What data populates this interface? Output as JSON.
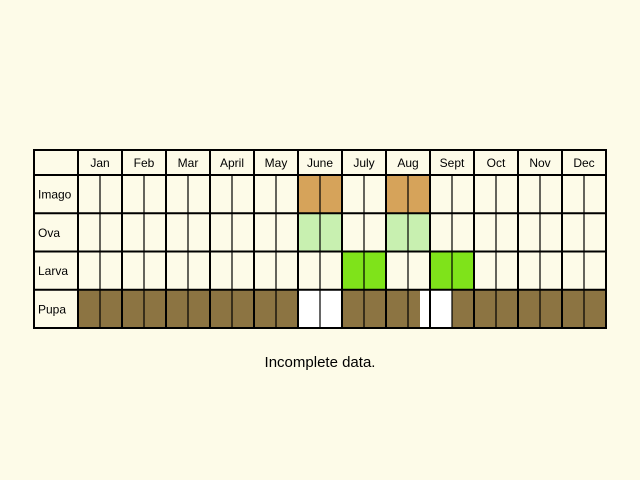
{
  "months": [
    "Jan",
    "Feb",
    "Mar",
    "Apr",
    "May",
    "June",
    "July",
    "Aug",
    "Sept",
    "Oct",
    "Nov",
    "Dec"
  ],
  "month_labels": [
    "Jan",
    "Feb",
    "Mar",
    "April",
    "May",
    "June",
    "July",
    "Aug",
    "Sept",
    "Oct",
    "Nov",
    "Dec"
  ],
  "colors": {
    "background": "#fdfbe8",
    "empty": "#fdfbe8",
    "grid": "#000000",
    "imago": "#d6a35a",
    "ova": "#c8f0b0",
    "larva": "#7fe31a",
    "pupa": "#8c7442",
    "gap": "#ffffff"
  },
  "stages": [
    {
      "label": "Imago",
      "key": "imago",
      "halves": [
        0,
        0,
        0,
        0,
        0,
        0,
        0,
        0,
        0,
        0,
        1,
        1,
        0,
        0,
        1,
        1,
        0,
        0,
        0,
        0,
        0,
        0,
        0,
        0
      ]
    },
    {
      "label": "Ova",
      "key": "ova",
      "halves": [
        0,
        0,
        0,
        0,
        0,
        0,
        0,
        0,
        0,
        0,
        1,
        1,
        0,
        0,
        1,
        1,
        0,
        0,
        0,
        0,
        0,
        0,
        0,
        0
      ]
    },
    {
      "label": "Larva",
      "key": "larva",
      "halves": [
        0,
        0,
        0,
        0,
        0,
        0,
        0,
        0,
        0,
        0,
        0,
        0,
        1,
        1,
        0,
        0,
        1,
        1,
        0,
        0,
        0,
        0,
        0,
        0
      ]
    },
    {
      "label": "Pupa",
      "key": "pupa",
      "halves": [
        1,
        1,
        1,
        1,
        1,
        1,
        1,
        1,
        1,
        1,
        0,
        0,
        1,
        1,
        1,
        1,
        0,
        1,
        1,
        1,
        1,
        1,
        1,
        1
      ]
    }
  ],
  "note": "Incomplete data."
}
